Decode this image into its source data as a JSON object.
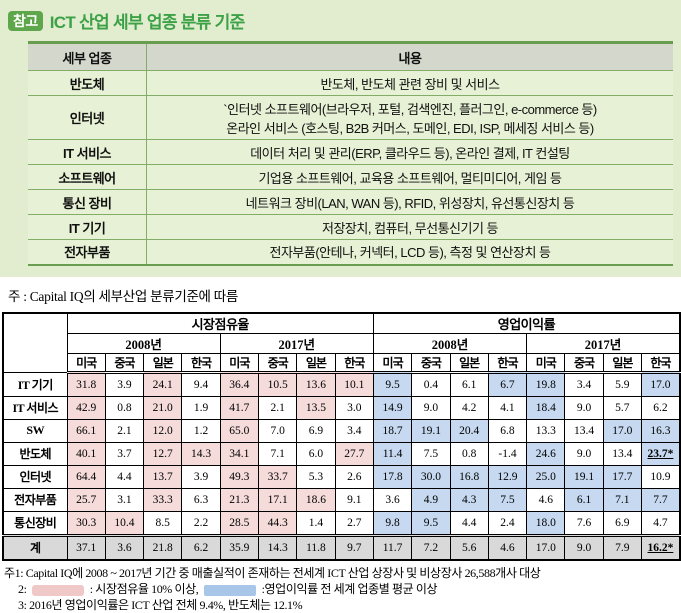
{
  "title": {
    "badge": "참고",
    "text": "ICT 산업 세부 업종 분류 기준"
  },
  "colors": {
    "band_green": "#e1edce",
    "row_green": "#e7f1d5",
    "header_gray": "#d4d7cc",
    "border_green": "#82ad66",
    "title_green": "#3da147",
    "badge_green": "#5ea64b",
    "highlight_pink": "#f5dcdb",
    "highlight_blue": "#c6d9f0",
    "total_gray": "#d9d9d9"
  },
  "classification_table": {
    "col_sector": "세부 업종",
    "col_desc": "내용",
    "rows": [
      {
        "sector": "반도체",
        "desc": [
          "반도체, 반도체 관련 장비 및 서비스"
        ]
      },
      {
        "sector": "인터넷",
        "desc": [
          "`인터넷 소프트웨어(브라우저, 포털, 검색엔진, 플러그인, e-commerce 등)",
          "온라인 서비스 (호스팅, B2B 커머스, 도메인, EDI, ISP, 메세징 서비스 등)"
        ]
      },
      {
        "sector": "IT 서비스",
        "desc": [
          "데이터 처리 및 관리(ERP, 클라우드 등), 온라인 결제, IT 컨설팅"
        ]
      },
      {
        "sector": "소프트웨어",
        "desc": [
          "기업용 소프트웨어, 교육용 소프트웨어, 멀티미디어, 게임 등"
        ]
      },
      {
        "sector": "통신 장비",
        "desc": [
          "네트워크 장비(LAN, WAN 등), RFID, 위성장치, 유선통신장치 등"
        ]
      },
      {
        "sector": "IT 기기",
        "desc": [
          "저장장치, 컴퓨터, 무선통신기기 등"
        ]
      },
      {
        "sector": "전자부품",
        "desc": [
          "전자부품(안테나, 커넥터, LCD 등), 측정 및 연산장치 등"
        ]
      }
    ],
    "note": "주 : Capital IQ의 세부산업 분류기준에 따름"
  },
  "stats_table": {
    "groups": [
      "시장점유율",
      "영업이익률"
    ],
    "years": [
      "2008년",
      "2017년"
    ],
    "countries": [
      "미국",
      "중국",
      "일본",
      "한국"
    ],
    "rows": [
      {
        "label": "IT 기기",
        "values": [
          "31.8",
          "3.9",
          "24.1",
          "9.4",
          "36.4",
          "10.5",
          "13.6",
          "10.1",
          "9.5",
          "0.4",
          "6.1",
          "6.7",
          "19.8",
          "3.4",
          "5.9",
          "17.0"
        ],
        "hl": [
          "p",
          "",
          "p",
          "",
          "p",
          "p",
          "p",
          "p",
          "b",
          "",
          "",
          "b",
          "b",
          "",
          "",
          "b"
        ]
      },
      {
        "label": "IT 서비스",
        "values": [
          "42.9",
          "0.8",
          "21.0",
          "1.9",
          "41.7",
          "2.1",
          "13.5",
          "3.0",
          "14.9",
          "9.0",
          "4.2",
          "4.1",
          "18.4",
          "9.0",
          "5.7",
          "6.2"
        ],
        "hl": [
          "p",
          "",
          "p",
          "",
          "p",
          "",
          "p",
          "",
          "b",
          "",
          "",
          "",
          "b",
          "",
          "",
          ""
        ]
      },
      {
        "label": "SW",
        "values": [
          "66.1",
          "2.1",
          "12.0",
          "1.2",
          "65.0",
          "7.0",
          "6.9",
          "3.4",
          "18.7",
          "19.1",
          "20.4",
          "6.8",
          "13.3",
          "13.4",
          "17.0",
          "16.3"
        ],
        "hl": [
          "p",
          "",
          "p",
          "",
          "p",
          "",
          "",
          "",
          "b",
          "b",
          "b",
          "",
          "",
          "",
          "b",
          "b"
        ]
      },
      {
        "label": "반도체",
        "values": [
          "40.1",
          "3.7",
          "12.7",
          "14.3",
          "34.1",
          "7.1",
          "6.0",
          "27.7",
          "11.4",
          "7.5",
          "0.8",
          "-1.4",
          "24.6",
          "9.0",
          "13.4",
          "23.7*"
        ],
        "hl": [
          "p",
          "",
          "p",
          "p",
          "p",
          "",
          "",
          "p",
          "b",
          "",
          "",
          "",
          "b",
          "",
          "",
          "b"
        ]
      },
      {
        "label": "인터넷",
        "values": [
          "64.4",
          "4.4",
          "13.7",
          "3.9",
          "49.3",
          "33.7",
          "5.3",
          "2.6",
          "17.8",
          "30.0",
          "16.8",
          "12.9",
          "25.0",
          "19.1",
          "17.7",
          "10.9"
        ],
        "hl": [
          "p",
          "",
          "p",
          "",
          "p",
          "p",
          "",
          "",
          "b",
          "b",
          "b",
          "b",
          "b",
          "b",
          "b",
          ""
        ]
      },
      {
        "label": "전자부품",
        "values": [
          "25.7",
          "3.1",
          "33.3",
          "6.3",
          "21.3",
          "17.1",
          "18.6",
          "9.1",
          "3.6",
          "4.9",
          "4.3",
          "7.5",
          "4.6",
          "6.1",
          "7.1",
          "7.7"
        ],
        "hl": [
          "p",
          "",
          "p",
          "",
          "p",
          "p",
          "p",
          "",
          "",
          "b",
          "b",
          "b",
          "",
          "b",
          "b",
          "b"
        ]
      },
      {
        "label": "통신장비",
        "values": [
          "30.3",
          "10.4",
          "8.5",
          "2.2",
          "28.5",
          "44.3",
          "1.4",
          "2.7",
          "9.8",
          "9.5",
          "4.4",
          "2.4",
          "18.0",
          "7.6",
          "6.9",
          "4.7"
        ],
        "hl": [
          "p",
          "p",
          "",
          "",
          "p",
          "p",
          "",
          "",
          "b",
          "b",
          "",
          "",
          "b",
          "",
          "",
          ""
        ]
      },
      {
        "label": "계",
        "total": true,
        "values": [
          "37.1",
          "3.6",
          "21.8",
          "6.2",
          "35.9",
          "14.3",
          "11.8",
          "9.7",
          "11.7",
          "7.2",
          "5.6",
          "4.6",
          "17.0",
          "9.0",
          "7.9",
          "16.2*"
        ],
        "hl": [
          "g",
          "g",
          "g",
          "g",
          "g",
          "g",
          "g",
          "g",
          "g",
          "g",
          "g",
          "g",
          "g",
          "g",
          "g",
          "g"
        ]
      }
    ]
  },
  "footnotes": {
    "line1": "주1: Capital IQ에 2008 ~ 2017년 기간 중 매출실적이 존재하는 전세계 ICT 산업 상장사 및 비상장사 26,588개사 대상",
    "line2_prefix": "2:",
    "line2_pink_label": ": 시장점유율 10% 이상,",
    "line2_blue_label": ":영업이익률 전 세계 업종별 평균 이상",
    "line3": "3: 2016년 영업이익률은 ICT 산업 전체 9.4%, 반도체는 12.1%"
  }
}
